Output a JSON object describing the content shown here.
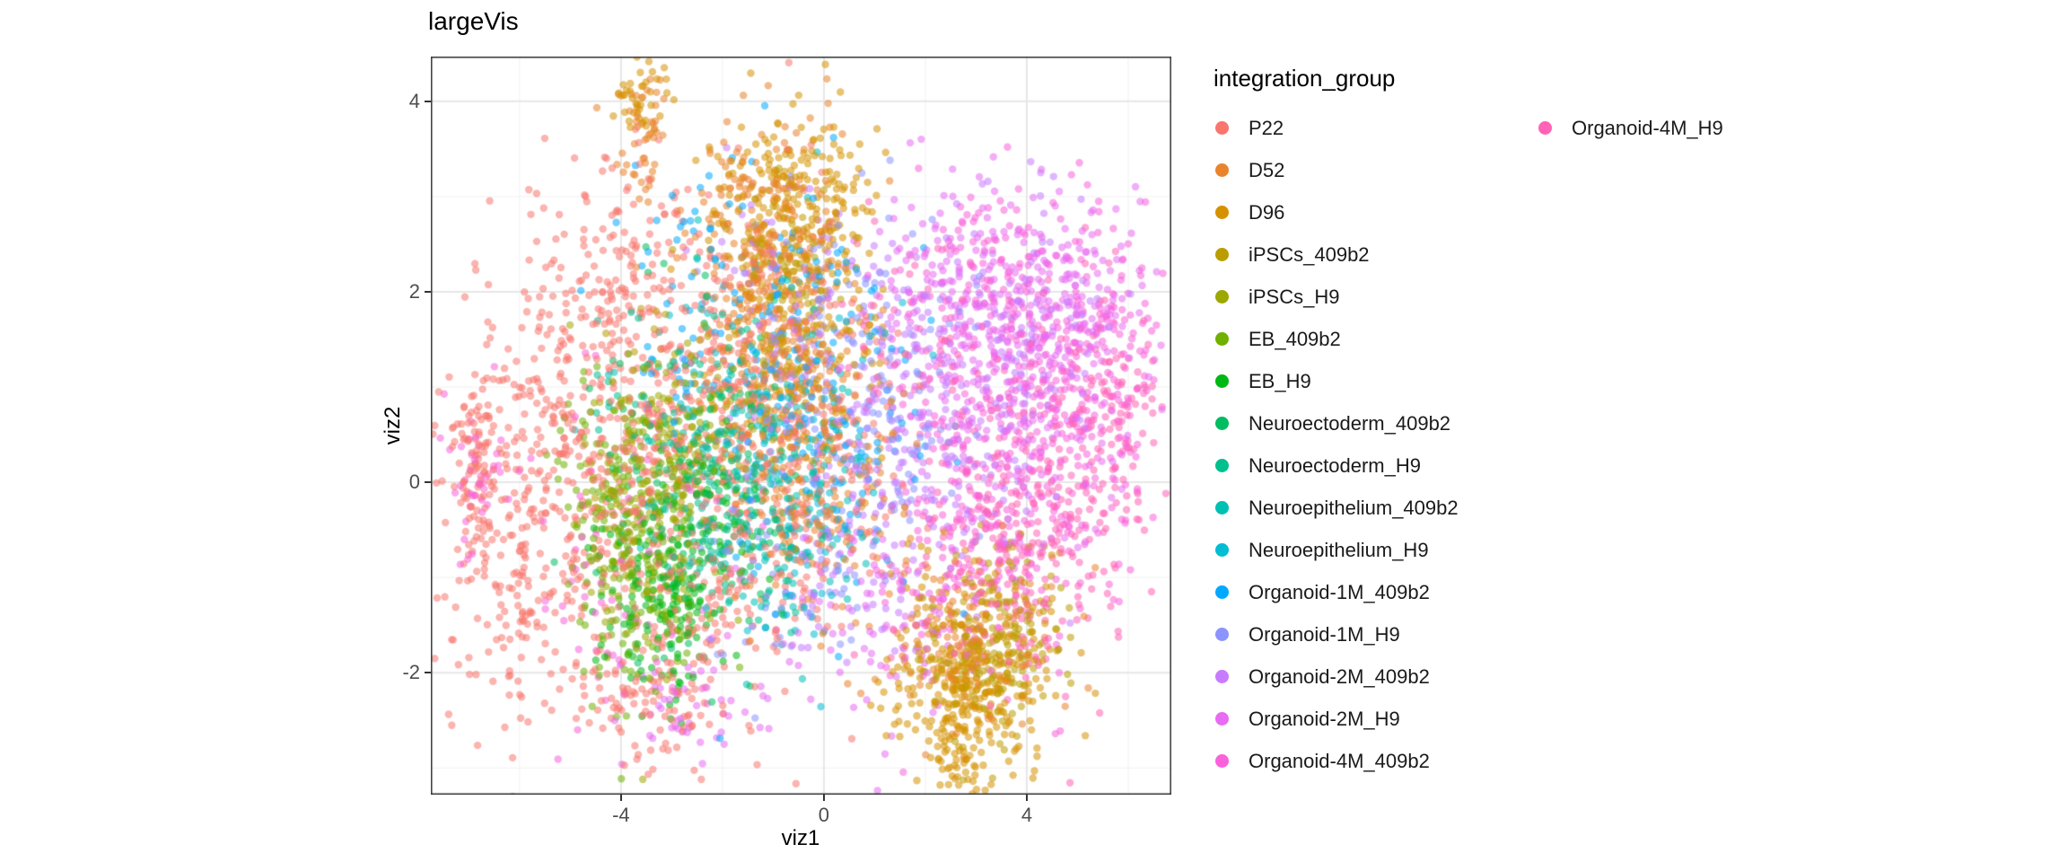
{
  "chart_data": {
    "type": "scatter",
    "title": "largeVis",
    "xlabel": "viz1",
    "ylabel": "viz2",
    "xlim": [
      -7.75,
      6.85
    ],
    "ylim": [
      -3.28,
      4.47
    ],
    "xticks": [
      -4,
      0,
      4
    ],
    "yticks": [
      -2,
      0,
      2,
      4
    ],
    "grid": true,
    "legend_title": "integration_group",
    "legend_position": "right",
    "legend_columns": [
      16,
      1
    ],
    "point_alpha": 0.55,
    "point_radius_px": 4.2,
    "series": [
      {
        "name": "P22",
        "color": "#F8766D",
        "clusters": [
          [
            -4.8,
            0.6,
            1.3,
            1.1,
            420
          ],
          [
            -2.5,
            -0.3,
            1.2,
            1.3,
            300
          ],
          [
            -1.2,
            1.2,
            0.9,
            1.2,
            220
          ],
          [
            -5.9,
            -1.2,
            0.8,
            0.7,
            130
          ],
          [
            -6.8,
            0.1,
            0.35,
            0.5,
            90
          ],
          [
            -3.5,
            -2.2,
            0.9,
            0.4,
            80
          ],
          [
            0.3,
            0.2,
            0.9,
            0.9,
            110
          ],
          [
            -3.8,
            2.2,
            0.9,
            0.7,
            90
          ]
        ]
      },
      {
        "name": "D52",
        "color": "#E9842C",
        "clusters": [
          [
            -0.9,
            1.6,
            0.7,
            1.1,
            260
          ],
          [
            -0.4,
            0.2,
            0.8,
            0.9,
            160
          ],
          [
            -3.55,
            3.7,
            0.25,
            0.45,
            50
          ],
          [
            2.9,
            -1.6,
            0.8,
            0.5,
            120
          ],
          [
            -1.6,
            2.6,
            0.6,
            0.5,
            80
          ]
        ]
      },
      {
        "name": "D96",
        "color": "#D69100",
        "clusters": [
          [
            -0.6,
            2.9,
            0.7,
            0.5,
            200
          ],
          [
            -0.9,
            1.8,
            0.8,
            0.8,
            150
          ],
          [
            3.0,
            -2.0,
            0.8,
            0.55,
            330
          ],
          [
            2.7,
            -2.8,
            0.35,
            0.3,
            60
          ],
          [
            -3.6,
            4.05,
            0.22,
            0.18,
            40
          ],
          [
            0.0,
            1.0,
            0.8,
            0.8,
            80
          ]
        ]
      },
      {
        "name": "iPSCs_409b2",
        "color": "#BC9D00",
        "clusters": [
          [
            3.3,
            -1.7,
            0.7,
            0.5,
            180
          ],
          [
            -2.7,
            0.6,
            0.9,
            0.7,
            70
          ],
          [
            -0.5,
            2.2,
            0.6,
            0.5,
            60
          ]
        ]
      },
      {
        "name": "iPSCs_H9",
        "color": "#9CA700",
        "clusters": [
          [
            -3.6,
            -0.4,
            0.7,
            0.7,
            150
          ],
          [
            -2.9,
            0.4,
            0.7,
            0.6,
            80
          ]
        ]
      },
      {
        "name": "EB_409b2",
        "color": "#6FB000",
        "clusters": [
          [
            -3.4,
            -0.9,
            0.7,
            0.7,
            160
          ],
          [
            -4.2,
            -0.2,
            0.6,
            0.6,
            80
          ]
        ]
      },
      {
        "name": "EB_H9",
        "color": "#00B813",
        "clusters": [
          [
            -3.1,
            -1.3,
            0.65,
            0.6,
            150
          ],
          [
            -2.5,
            -0.4,
            0.7,
            0.6,
            70
          ]
        ]
      },
      {
        "name": "Neuroectoderm_409b2",
        "color": "#00BD61",
        "clusters": [
          [
            -2.8,
            0.2,
            0.9,
            0.8,
            100
          ],
          [
            -1.8,
            -0.6,
            0.8,
            0.7,
            60
          ]
        ]
      },
      {
        "name": "Neuroectoderm_H9",
        "color": "#00C08E",
        "clusters": [
          [
            -2.2,
            0.5,
            0.9,
            0.8,
            90
          ],
          [
            -1.2,
            -0.2,
            0.8,
            0.8,
            60
          ]
        ]
      },
      {
        "name": "Neuroepithelium_409b2",
        "color": "#00C0B4",
        "clusters": [
          [
            -1.8,
            0.2,
            1.0,
            1.0,
            90
          ],
          [
            -0.6,
            -0.6,
            0.8,
            0.7,
            50
          ]
        ]
      },
      {
        "name": "Neuroepithelium_H9",
        "color": "#00BDD4",
        "clusters": [
          [
            -1.2,
            0.6,
            1.0,
            1.0,
            90
          ],
          [
            -0.2,
            -0.3,
            0.8,
            0.8,
            50
          ]
        ]
      },
      {
        "name": "Organoid-1M_409b2",
        "color": "#00A9FF",
        "clusters": [
          [
            -0.6,
            1.2,
            1.0,
            1.2,
            120
          ],
          [
            -2.6,
            1.8,
            0.8,
            0.7,
            50
          ],
          [
            0.8,
            0.5,
            0.8,
            0.8,
            50
          ]
        ]
      },
      {
        "name": "Organoid-1M_H9",
        "color": "#8B93FF",
        "clusters": [
          [
            -0.2,
            0.8,
            1.1,
            1.2,
            120
          ],
          [
            1.5,
            0.8,
            0.9,
            0.8,
            60
          ],
          [
            -0.8,
            -1.0,
            0.8,
            0.6,
            40
          ]
        ]
      },
      {
        "name": "Organoid-2M_409b2",
        "color": "#C77CFF",
        "clusters": [
          [
            2.3,
            0.8,
            1.1,
            1.0,
            180
          ],
          [
            0.8,
            -0.3,
            0.9,
            0.9,
            90
          ],
          [
            4.0,
            1.5,
            0.9,
            0.7,
            80
          ],
          [
            -0.5,
            1.8,
            0.8,
            0.8,
            60
          ]
        ]
      },
      {
        "name": "Organoid-2M_H9",
        "color": "#E76BF3",
        "clusters": [
          [
            3.6,
            1.2,
            1.2,
            0.9,
            280
          ],
          [
            4.8,
            1.9,
            0.7,
            0.5,
            120
          ],
          [
            1.2,
            -1.3,
            1.2,
            0.6,
            100
          ],
          [
            2.2,
            2.1,
            0.7,
            0.5,
            80
          ],
          [
            -2.6,
            -2.3,
            0.7,
            0.35,
            50
          ]
        ]
      },
      {
        "name": "Organoid-4M_409b2",
        "color": "#FA62DB",
        "clusters": [
          [
            4.2,
            0.6,
            1.2,
            1.1,
            300
          ],
          [
            5.3,
            1.3,
            0.6,
            0.6,
            100
          ],
          [
            2.6,
            -0.4,
            0.9,
            0.8,
            120
          ],
          [
            3.2,
            2.2,
            0.7,
            0.4,
            70
          ],
          [
            -6.9,
            0.0,
            0.3,
            0.4,
            40
          ],
          [
            -4.0,
            -0.8,
            1.2,
            0.9,
            60
          ]
        ]
      },
      {
        "name": "Organoid-4M_H9",
        "color": "#FF63B6",
        "clusters": [
          [
            4.6,
            -0.1,
            0.9,
            0.9,
            200
          ],
          [
            3.4,
            -0.9,
            0.9,
            0.6,
            120
          ],
          [
            5.6,
            0.8,
            0.5,
            0.7,
            70
          ],
          [
            1.8,
            1.5,
            0.8,
            0.7,
            60
          ]
        ]
      }
    ],
    "grid_major_color": "#E7E7E7",
    "grid_minor_color": "#F2F2F2",
    "panel_border_color": "#333333"
  }
}
